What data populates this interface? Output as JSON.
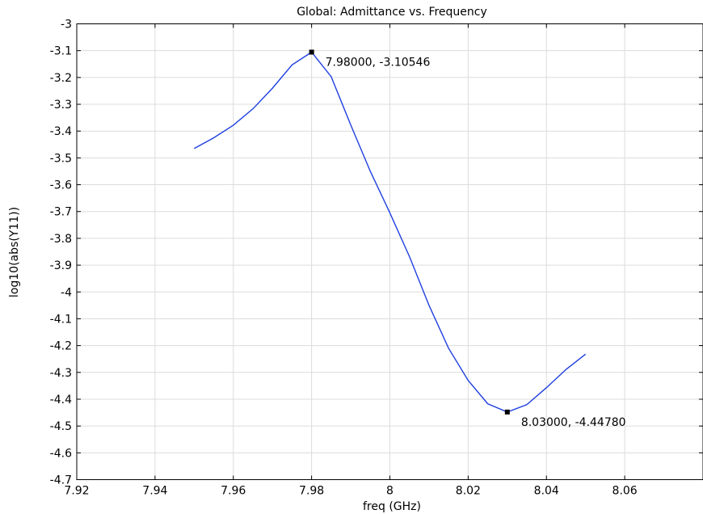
{
  "chart_data": {
    "type": "line",
    "title": "Global: Admittance vs. Frequency",
    "xlabel": "freq (GHz)",
    "ylabel": "log10(abs(Y11))",
    "xlim": [
      7.92,
      8.08
    ],
    "ylim": [
      -4.7,
      -3.0
    ],
    "x_ticks": [
      7.92,
      7.94,
      7.96,
      7.98,
      8.0,
      8.02,
      8.04,
      8.06
    ],
    "x_tick_labels": [
      "7.92",
      "7.94",
      "7.96",
      "7.98",
      "8",
      "8.02",
      "8.04",
      "8.06"
    ],
    "y_ticks": [
      -3.0,
      -3.1,
      -3.2,
      -3.3,
      -3.4,
      -3.5,
      -3.6,
      -3.7,
      -3.8,
      -3.9,
      -4.0,
      -4.1,
      -4.2,
      -4.3,
      -4.4,
      -4.5,
      -4.6,
      -4.7
    ],
    "y_tick_labels": [
      "-3",
      "-3.1",
      "-3.2",
      "-3.3",
      "-3.4",
      "-3.5",
      "-3.6",
      "-3.7",
      "-3.8",
      "-3.9",
      "-4",
      "-4.1",
      "-4.2",
      "-4.3",
      "-4.4",
      "-4.5",
      "-4.6",
      "-4.7"
    ],
    "grid": true,
    "series": [
      {
        "color": "#1f3fe0",
        "x": [
          7.95,
          7.955,
          7.96,
          7.965,
          7.97,
          7.975,
          7.98,
          7.985,
          7.99,
          7.995,
          8.0,
          8.005,
          8.01,
          8.015,
          8.02,
          8.025,
          8.03,
          8.035,
          8.04,
          8.045,
          8.05
        ],
        "y": [
          -3.465,
          -3.425,
          -3.378,
          -3.317,
          -3.24,
          -3.153,
          -3.10546,
          -3.197,
          -3.377,
          -3.55,
          -3.705,
          -3.868,
          -4.05,
          -4.21,
          -4.33,
          -4.417,
          -4.4478,
          -4.42,
          -4.357,
          -4.289,
          -4.232
        ]
      }
    ],
    "annotations": [
      {
        "x": 7.98,
        "y": -3.10546,
        "text": "7.98000, -3.10546"
      },
      {
        "x": 8.03,
        "y": -4.4478,
        "text": "8.03000, -4.44780"
      }
    ]
  }
}
